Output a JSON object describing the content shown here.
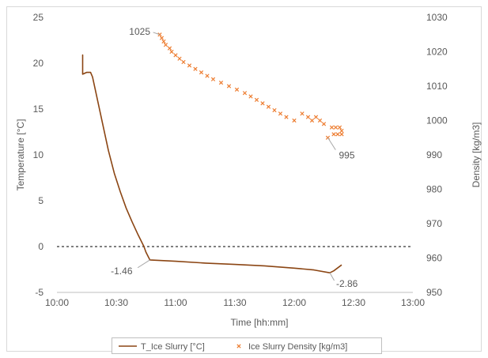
{
  "chart_data": {
    "type": "line",
    "xlabel": "Time [hh:mm]",
    "ylabel": "Temperature [°C]",
    "y2label": "Density [kg/m3]",
    "xlim": [
      "10:00",
      "13:00"
    ],
    "ylim": [
      -5,
      25
    ],
    "y2lim": [
      950,
      1030
    ],
    "grid": false,
    "legend_position": "bottom",
    "x_ticks": [
      "10:00",
      "10:30",
      "11:00",
      "11:30",
      "12:00",
      "12:30",
      "13:00"
    ],
    "y_ticks": [
      "-5",
      "0",
      "5",
      "10",
      "15",
      "20",
      "25"
    ],
    "y2_ticks": [
      "950",
      "960",
      "970",
      "980",
      "990",
      "1000",
      "1010",
      "1020",
      "1030"
    ],
    "reference_line": {
      "y": 0,
      "style": "dashed"
    },
    "series": [
      {
        "name": "T_Ice Slurry [°C]",
        "axis": "left",
        "color": "#8B4513",
        "points": [
          [
            "10:13",
            20.6
          ],
          [
            "10:13",
            20.9
          ],
          [
            "10:13",
            18.8
          ],
          [
            "10:15",
            19.0
          ],
          [
            "10:17",
            19.0
          ],
          [
            "10:18",
            18.5
          ],
          [
            "10:20",
            16.5
          ],
          [
            "10:23",
            13.5
          ],
          [
            "10:26",
            10.5
          ],
          [
            "10:29",
            8.0
          ],
          [
            "10:32",
            6.0
          ],
          [
            "10:35",
            4.2
          ],
          [
            "10:38",
            2.7
          ],
          [
            "10:41",
            1.3
          ],
          [
            "10:44",
            0.0
          ],
          [
            "10:45",
            -0.6
          ],
          [
            "10:47",
            -1.46
          ],
          [
            "11:00",
            -1.6
          ],
          [
            "11:15",
            -1.8
          ],
          [
            "11:30",
            -1.95
          ],
          [
            "11:45",
            -2.1
          ],
          [
            "12:00",
            -2.35
          ],
          [
            "12:10",
            -2.55
          ],
          [
            "12:18",
            -2.86
          ],
          [
            "12:20",
            -2.65
          ],
          [
            "12:24",
            -2.0
          ]
        ]
      },
      {
        "name": "Ice Slurry Density [kg/m3]",
        "axis": "right",
        "color": "#ED7D31",
        "marker": "x",
        "points": [
          [
            "10:52",
            1025
          ],
          [
            "10:53",
            1024
          ],
          [
            "10:54",
            1023
          ],
          [
            "10:55",
            1022
          ],
          [
            "10:57",
            1021
          ],
          [
            "10:58",
            1020
          ],
          [
            "11:00",
            1019
          ],
          [
            "11:02",
            1018
          ],
          [
            "11:04",
            1017
          ],
          [
            "11:07",
            1016
          ],
          [
            "11:10",
            1015
          ],
          [
            "11:13",
            1014
          ],
          [
            "11:16",
            1013
          ],
          [
            "11:19",
            1012
          ],
          [
            "11:23",
            1011
          ],
          [
            "11:27",
            1010
          ],
          [
            "11:31",
            1009
          ],
          [
            "11:35",
            1008
          ],
          [
            "11:38",
            1007
          ],
          [
            "11:41",
            1006
          ],
          [
            "11:44",
            1005
          ],
          [
            "11:47",
            1004
          ],
          [
            "11:50",
            1003
          ],
          [
            "11:53",
            1002
          ],
          [
            "11:56",
            1001
          ],
          [
            "12:00",
            1000
          ],
          [
            "12:04",
            1002
          ],
          [
            "12:07",
            1001
          ],
          [
            "12:09",
            1000
          ],
          [
            "12:11",
            1001
          ],
          [
            "12:13",
            1000
          ],
          [
            "12:15",
            999
          ],
          [
            "12:17",
            995
          ],
          [
            "12:19",
            998
          ],
          [
            "12:20",
            996
          ],
          [
            "12:21",
            998
          ],
          [
            "12:22",
            996
          ],
          [
            "12:23",
            998
          ],
          [
            "12:24",
            996
          ],
          [
            "12:24",
            997
          ]
        ]
      }
    ],
    "annotations": [
      {
        "text": "-1.46",
        "axis": "left",
        "x": "10:47",
        "y": -1.46
      },
      {
        "text": "-2.86",
        "axis": "left",
        "x": "12:18",
        "y": -2.86
      },
      {
        "text": "1025",
        "axis": "right",
        "x": "10:52",
        "y": 1025
      },
      {
        "text": "995",
        "axis": "right",
        "x": "12:17",
        "y": 995
      }
    ]
  }
}
